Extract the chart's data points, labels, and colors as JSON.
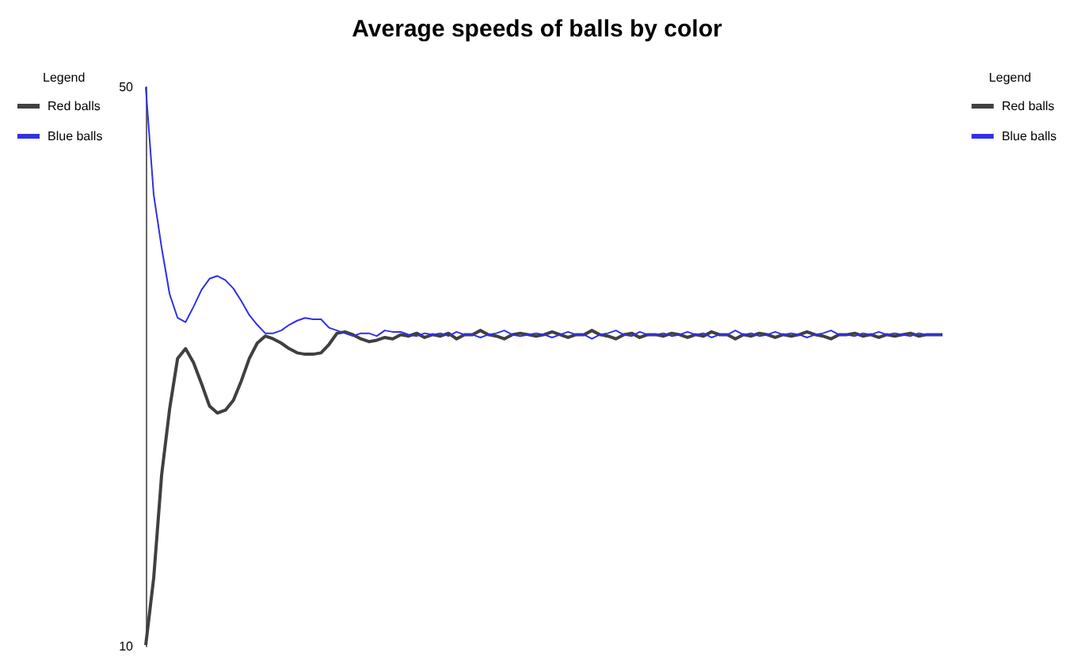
{
  "chart_data": {
    "type": "line",
    "title": "Average speeds of balls by color",
    "legend_title": "Legend",
    "legend": [
      "top left",
      "top right"
    ],
    "line_style": "solid",
    "grid": false,
    "categories": [
      null,
      null,
      null,
      null,
      null,
      null,
      null,
      null,
      null,
      null,
      null,
      null,
      null,
      null,
      null,
      null,
      null,
      null,
      null,
      null,
      null,
      null,
      null,
      null,
      null,
      null,
      null,
      null,
      null,
      null,
      null,
      null,
      null,
      null,
      null,
      null,
      null,
      null,
      null,
      null,
      null,
      null,
      null,
      null,
      null,
      null,
      null,
      null,
      null,
      null,
      null,
      null,
      null,
      null,
      null,
      null,
      null,
      null,
      null,
      null,
      null,
      null,
      null,
      null,
      null,
      null,
      null,
      null,
      null,
      null,
      null,
      null,
      null,
      null,
      null,
      null,
      null,
      null,
      null,
      null,
      null,
      null,
      null,
      null,
      null,
      null,
      null,
      null,
      null,
      null,
      null,
      null,
      null,
      null,
      null,
      null,
      null,
      null,
      null,
      null,
      null
    ],
    "ylim": [
      10,
      50
    ],
    "yticks": [
      10,
      50
    ],
    "tick_labels": "y",
    "series": [
      {
        "name": "Red balls",
        "color": "#404040",
        "values": [
          10.1,
          14.9,
          22.3,
          27.0,
          30.6,
          31.3,
          30.3,
          28.8,
          27.2,
          26.7,
          26.9,
          27.6,
          29.0,
          30.6,
          31.7,
          32.2,
          32.0,
          31.7,
          31.3,
          31.0,
          30.9,
          30.9,
          31.0,
          31.6,
          32.4,
          32.5,
          32.3,
          32.0,
          31.8,
          31.9,
          32.1,
          32.0,
          32.3,
          32.2,
          32.4,
          32.1,
          32.3,
          32.2,
          32.4,
          32.0,
          32.3,
          32.3,
          32.6,
          32.3,
          32.2,
          32.0,
          32.3,
          32.4,
          32.3,
          32.2,
          32.3,
          32.5,
          32.3,
          32.1,
          32.3,
          32.3,
          32.6,
          32.3,
          32.2,
          32.0,
          32.3,
          32.4,
          32.1,
          32.3,
          32.3,
          32.2,
          32.4,
          32.3,
          32.1,
          32.3,
          32.2,
          32.5,
          32.3,
          32.3,
          32.0,
          32.3,
          32.2,
          32.4,
          32.3,
          32.1,
          32.3,
          32.2,
          32.3,
          32.5,
          32.3,
          32.2,
          32.0,
          32.3,
          32.3,
          32.4,
          32.2,
          32.3,
          32.1,
          32.3,
          32.2,
          32.3,
          32.4,
          32.2,
          32.3,
          32.3,
          32.3
        ]
      },
      {
        "name": "Blue balls",
        "color": "#3030e8",
        "values": [
          50.0,
          42.3,
          38.5,
          35.2,
          33.5,
          33.2,
          34.3,
          35.5,
          36.3,
          36.5,
          36.2,
          35.6,
          34.7,
          33.7,
          33.0,
          32.4,
          32.4,
          32.6,
          33.0,
          33.3,
          33.5,
          33.4,
          33.4,
          32.8,
          32.6,
          32.4,
          32.2,
          32.4,
          32.4,
          32.2,
          32.6,
          32.5,
          32.5,
          32.3,
          32.2,
          32.4,
          32.3,
          32.4,
          32.2,
          32.5,
          32.3,
          32.3,
          32.1,
          32.3,
          32.4,
          32.6,
          32.3,
          32.2,
          32.3,
          32.4,
          32.3,
          32.1,
          32.3,
          32.5,
          32.3,
          32.3,
          32.0,
          32.3,
          32.4,
          32.6,
          32.3,
          32.2,
          32.5,
          32.3,
          32.3,
          32.4,
          32.2,
          32.3,
          32.5,
          32.3,
          32.4,
          32.1,
          32.3,
          32.3,
          32.6,
          32.3,
          32.4,
          32.2,
          32.3,
          32.5,
          32.3,
          32.4,
          32.3,
          32.1,
          32.3,
          32.4,
          32.6,
          32.3,
          32.3,
          32.2,
          32.4,
          32.3,
          32.5,
          32.3,
          32.4,
          32.3,
          32.2,
          32.4,
          32.3,
          32.3,
          32.3
        ]
      }
    ]
  }
}
